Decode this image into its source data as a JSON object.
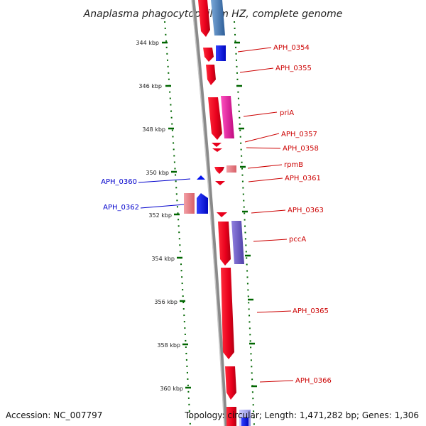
{
  "title": "Anaplasma phagocytophilum HZ, complete genome",
  "colors": {
    "forward": "#e8001c",
    "reverse": "#0010f0",
    "forward_light": "#e87880",
    "reverse_light": "#4f84c4",
    "magenta": "#e0189a",
    "purple": "#6c54c0",
    "backbone": "#8a8a8a",
    "tick": "#006600",
    "forward_label": "#cc0000",
    "reverse_label": "#0000cc"
  },
  "ticks": [
    "344 kbp",
    "346 kbp",
    "348 kbp",
    "350 kbp",
    "352 kbp",
    "354 kbp",
    "356 kbp",
    "358 kbp",
    "360 kbp"
  ],
  "forward_labels": [
    "APH_0354",
    "APH_0355",
    "priA",
    "APH_0357",
    "APH_0358",
    "rpmB",
    "APH_0361",
    "APH_0363",
    "pccA",
    "APH_0365",
    "APH_0366"
  ],
  "reverse_labels": [
    "APH_0360",
    "APH_0362"
  ],
  "footer": {
    "accession": "Accession: NC_007797",
    "topology": "Topology: circular; Length: 1,471,282 bp; Genes: 1,306"
  }
}
